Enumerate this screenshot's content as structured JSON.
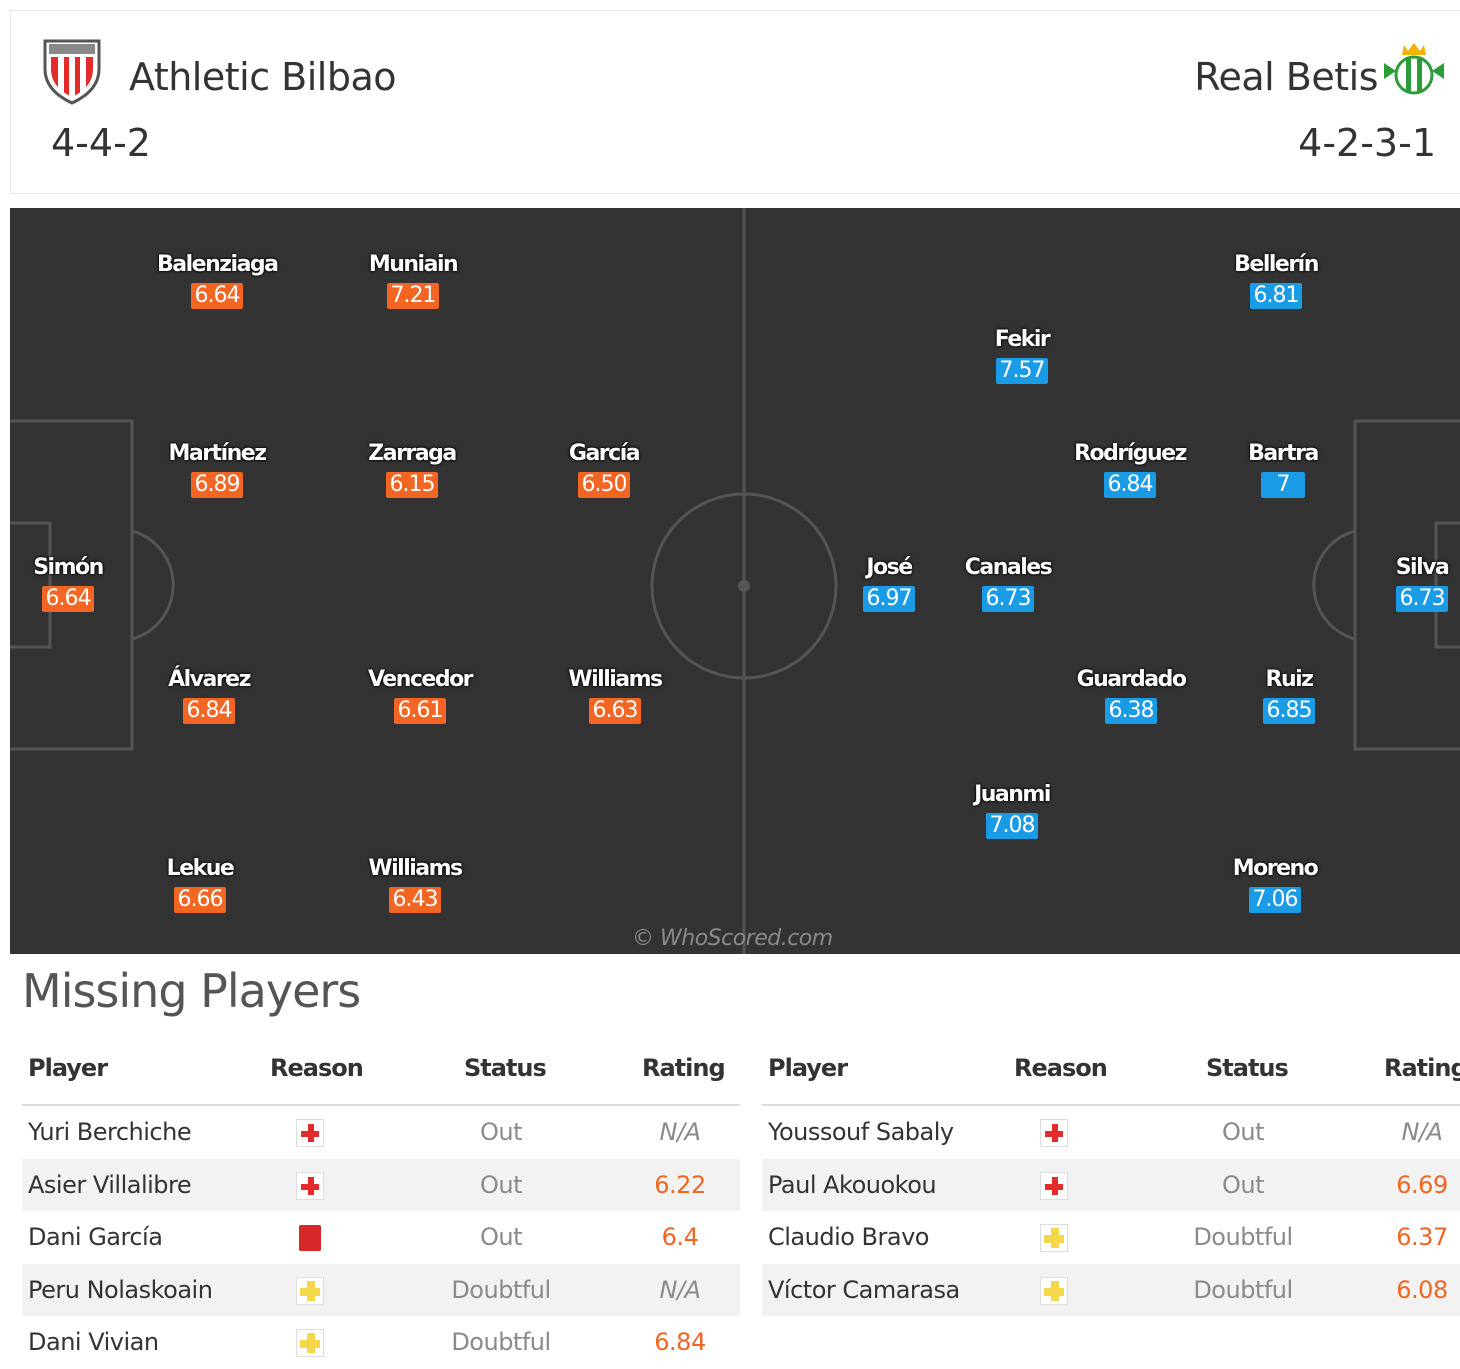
{
  "match": {
    "home": {
      "name": "Athletic Bilbao",
      "formation": "4-4-2",
      "crest": "athletic-bilbao-crest"
    },
    "away": {
      "name": "Real Betis",
      "formation": "4-2-3-1",
      "crest": "real-betis-crest"
    }
  },
  "colors": {
    "home_rating": "#f26522",
    "away_rating": "#1a9be6",
    "pitch": "#333333"
  },
  "lineup": {
    "home": [
      {
        "name": "Balenziaga",
        "rating": "6.64"
      },
      {
        "name": "Muniain",
        "rating": "7.21"
      },
      {
        "name": "Martínez",
        "rating": "6.89"
      },
      {
        "name": "Zarraga",
        "rating": "6.15"
      },
      {
        "name": "García",
        "rating": "6.50"
      },
      {
        "name": "Simón",
        "rating": "6.64"
      },
      {
        "name": "Álvarez",
        "rating": "6.84"
      },
      {
        "name": "Vencedor",
        "rating": "6.61"
      },
      {
        "name": "Williams",
        "rating": "6.63"
      },
      {
        "name": "Lekue",
        "rating": "6.66"
      },
      {
        "name": "Williams",
        "rating": "6.43"
      }
    ],
    "away": [
      {
        "name": "Bellerín",
        "rating": "6.81"
      },
      {
        "name": "Fekir",
        "rating": "7.57"
      },
      {
        "name": "Rodríguez",
        "rating": "6.84"
      },
      {
        "name": "Bartra",
        "rating": "7"
      },
      {
        "name": "José",
        "rating": "6.97"
      },
      {
        "name": "Canales",
        "rating": "6.73"
      },
      {
        "name": "Silva",
        "rating": "6.73"
      },
      {
        "name": "Guardado",
        "rating": "6.38"
      },
      {
        "name": "Ruiz",
        "rating": "6.85"
      },
      {
        "name": "Juanmi",
        "rating": "7.08"
      },
      {
        "name": "Moreno",
        "rating": "7.06"
      }
    ]
  },
  "watermark": "© WhoScored.com",
  "missing": {
    "title": "Missing Players",
    "headers": {
      "player": "Player",
      "reason": "Reason",
      "status": "Status",
      "rating": "Rating"
    },
    "home": [
      {
        "player": "Yuri Berchiche",
        "reason": "injury-icon",
        "status": "Out",
        "rating": "N/A"
      },
      {
        "player": "Asier Villalibre",
        "reason": "injury-icon",
        "status": "Out",
        "rating": "6.22"
      },
      {
        "player": "Dani García",
        "reason": "red-card-icon",
        "status": "Out",
        "rating": "6.4"
      },
      {
        "player": "Peru Nolaskoain",
        "reason": "doubtful-icon",
        "status": "Doubtful",
        "rating": "N/A"
      },
      {
        "player": "Dani Vivian",
        "reason": "doubtful-icon",
        "status": "Doubtful",
        "rating": "6.84"
      }
    ],
    "away": [
      {
        "player": "Youssouf Sabaly",
        "reason": "injury-icon",
        "status": "Out",
        "rating": "N/A"
      },
      {
        "player": "Paul Akouokou",
        "reason": "injury-icon",
        "status": "Out",
        "rating": "6.69"
      },
      {
        "player": "Claudio Bravo",
        "reason": "doubtful-icon",
        "status": "Doubtful",
        "rating": "6.37"
      },
      {
        "player": "Víctor Camarasa",
        "reason": "doubtful-icon",
        "status": "Doubtful",
        "rating": "6.08"
      }
    ]
  }
}
